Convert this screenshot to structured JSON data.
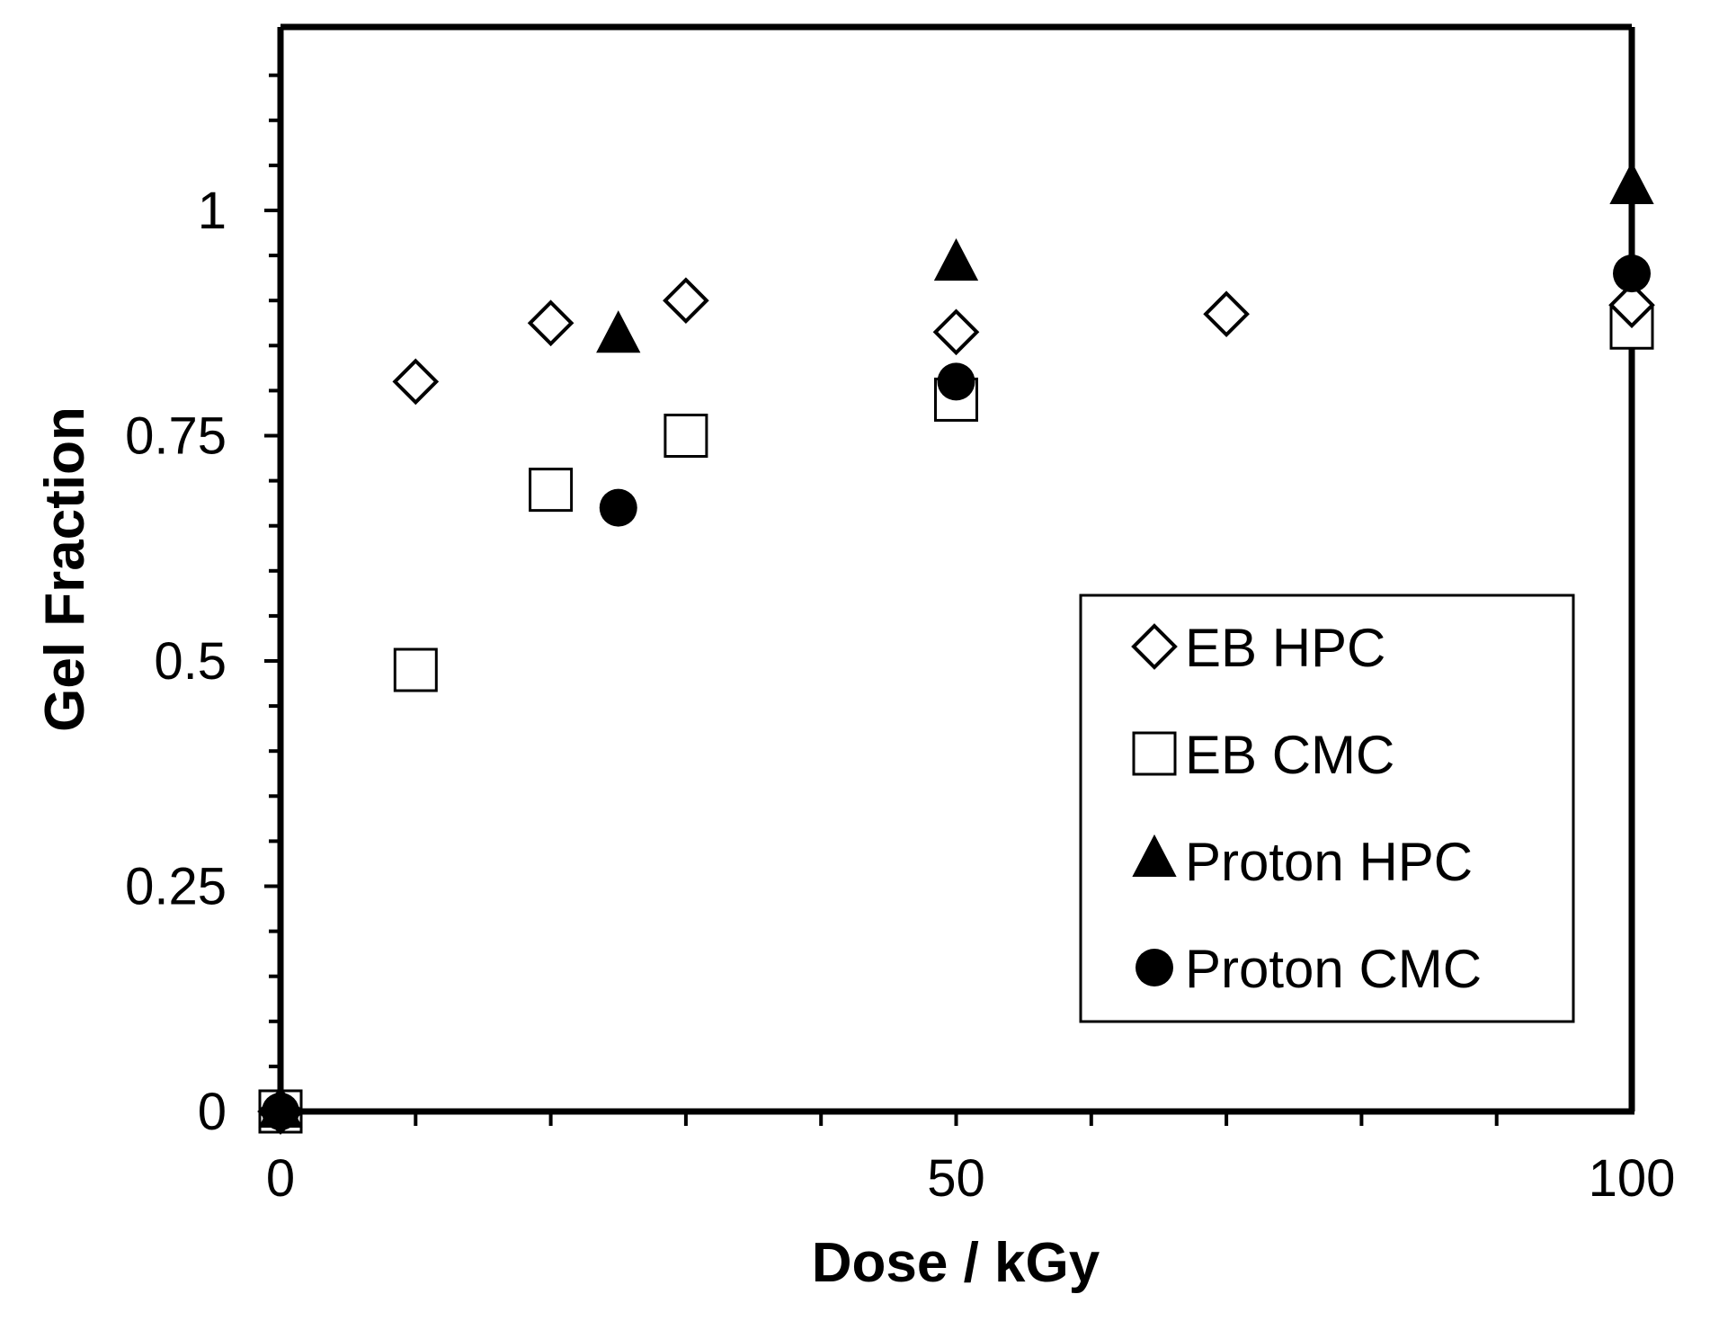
{
  "chart_data": {
    "type": "scatter",
    "title": "",
    "xlabel": "Dose / kGy",
    "ylabel": "Gel Fraction",
    "xlim": [
      0,
      100
    ],
    "ylim": [
      0,
      1.2
    ],
    "x_ticks": [
      0,
      50,
      100
    ],
    "x_tick_labels": [
      "0",
      "50",
      "100"
    ],
    "y_ticks": [
      0,
      0.25,
      0.5,
      0.75,
      1
    ],
    "y_tick_labels": [
      "0",
      "0.25",
      "0.5",
      "0.75",
      "1"
    ],
    "grid": false,
    "legend_position": "center-right",
    "series": [
      {
        "name": "EB HPC",
        "marker": "diamond-open",
        "x": [
          0,
          10,
          20,
          30,
          50,
          70,
          100
        ],
        "y": [
          0,
          0.81,
          0.875,
          0.9,
          0.865,
          0.885,
          0.895
        ]
      },
      {
        "name": "EB CMC",
        "marker": "square-open",
        "x": [
          0,
          10,
          20,
          30,
          50,
          100
        ],
        "y": [
          0,
          0.49,
          0.69,
          0.75,
          0.79,
          0.87
        ]
      },
      {
        "name": "Proton HPC",
        "marker": "triangle-filled",
        "x": [
          0,
          25,
          50,
          100
        ],
        "y": [
          0,
          0.86,
          0.94,
          1.025
        ]
      },
      {
        "name": "Proton CMC",
        "marker": "circle-filled",
        "x": [
          0,
          25,
          50,
          100
        ],
        "y": [
          0,
          0.67,
          0.81,
          0.93
        ]
      }
    ]
  }
}
